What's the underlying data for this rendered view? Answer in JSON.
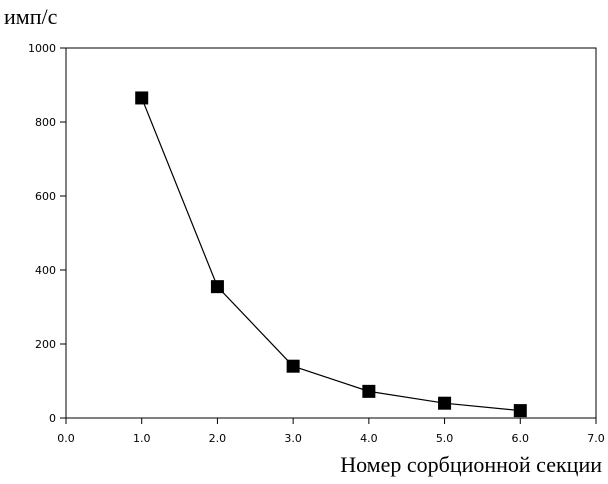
{
  "chart_data": {
    "type": "line",
    "title": "",
    "xlabel": "Номер сорбционной секции",
    "ylabel": "имп/с",
    "xlim": [
      0,
      7
    ],
    "ylim": [
      0,
      1000
    ],
    "x_ticks": [
      "0.0",
      "1.0",
      "2.0",
      "3.0",
      "4.0",
      "5.0",
      "6.0",
      "7.0"
    ],
    "y_ticks": [
      "0",
      "200",
      "400",
      "600",
      "800",
      "1000"
    ],
    "grid": false,
    "legend": "none",
    "marker": "square",
    "series": [
      {
        "x": [
          1,
          2,
          3,
          4,
          5,
          6
        ],
        "values": [
          865,
          355,
          140,
          72,
          40,
          20
        ]
      }
    ],
    "colors": {
      "line": "#000000",
      "marker": "#000000",
      "axes": "#000000"
    }
  }
}
